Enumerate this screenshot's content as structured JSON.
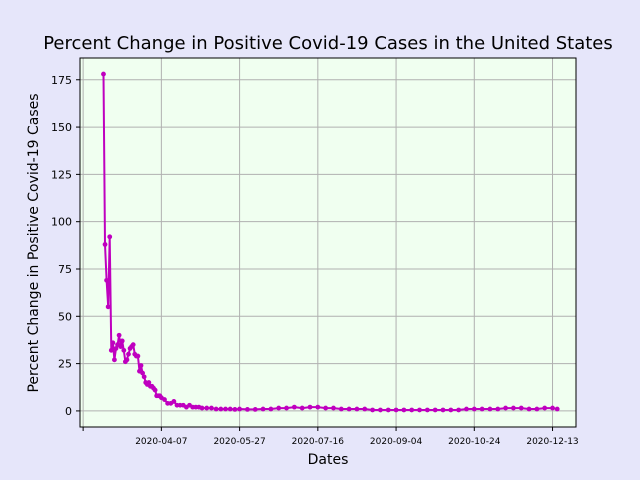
{
  "chart_data": {
    "type": "line",
    "title": "Percent Change in Positive Covid-19 Cases in the United States",
    "xlabel": "Dates",
    "ylabel": "Percent Change in Positive Covid-19 Cases",
    "x_range": [
      "2020-02-15",
      "2020-12-28"
    ],
    "ylim": [
      -8.5,
      186.5
    ],
    "x_ticks": [
      "",
      "2020-04-07",
      "2020-05-27",
      "2020-07-16",
      "2020-09-04",
      "2020-10-24",
      "2020-12-13"
    ],
    "y_ticks": [
      0,
      25,
      50,
      75,
      100,
      125,
      150,
      175
    ],
    "grid": true,
    "colors": {
      "background": "#e6e6fa",
      "plot_area": "#f0fff0",
      "grid": "#b0b0b0",
      "series": "#bf00bf"
    },
    "series": [
      {
        "x": [
          "2020-03-01",
          "2020-03-02",
          "2020-03-03",
          "2020-03-04",
          "2020-03-05",
          "2020-03-06",
          "2020-03-07",
          "2020-03-08",
          "2020-03-09",
          "2020-03-10",
          "2020-03-11",
          "2020-03-12",
          "2020-03-13",
          "2020-03-14",
          "2020-03-15",
          "2020-03-16",
          "2020-03-17",
          "2020-03-18",
          "2020-03-19",
          "2020-03-20",
          "2020-03-21",
          "2020-03-22",
          "2020-03-23",
          "2020-03-24",
          "2020-03-25",
          "2020-03-26",
          "2020-03-27",
          "2020-03-28",
          "2020-03-29",
          "2020-03-30",
          "2020-03-31",
          "2020-04-01",
          "2020-04-02",
          "2020-04-03",
          "2020-04-04",
          "2020-04-05",
          "2020-04-06",
          "2020-04-07",
          "2020-04-09",
          "2020-04-11",
          "2020-04-13",
          "2020-04-15",
          "2020-04-17",
          "2020-04-19",
          "2020-04-21",
          "2020-04-23",
          "2020-04-25",
          "2020-04-27",
          "2020-04-29",
          "2020-05-01",
          "2020-05-03",
          "2020-05-06",
          "2020-05-09",
          "2020-05-12",
          "2020-05-15",
          "2020-05-18",
          "2020-05-21",
          "2020-05-24",
          "2020-05-27",
          "2020-06-01",
          "2020-06-06",
          "2020-06-11",
          "2020-06-16",
          "2020-06-21",
          "2020-06-26",
          "2020-07-01",
          "2020-07-06",
          "2020-07-11",
          "2020-07-16",
          "2020-07-21",
          "2020-07-26",
          "2020-07-31",
          "2020-08-05",
          "2020-08-10",
          "2020-08-15",
          "2020-08-20",
          "2020-08-25",
          "2020-08-30",
          "2020-09-04",
          "2020-09-09",
          "2020-09-14",
          "2020-09-19",
          "2020-09-24",
          "2020-09-29",
          "2020-10-04",
          "2020-10-09",
          "2020-10-14",
          "2020-10-19",
          "2020-10-24",
          "2020-10-29",
          "2020-11-03",
          "2020-11-08",
          "2020-11-13",
          "2020-11-18",
          "2020-11-23",
          "2020-11-28",
          "2020-12-03",
          "2020-12-08",
          "2020-12-13",
          "2020-12-16"
        ],
        "values": [
          178,
          88,
          69,
          55,
          92,
          32,
          36,
          27,
          33,
          35,
          40,
          34,
          37,
          32,
          26,
          27,
          30,
          33,
          34,
          35,
          30,
          29,
          29,
          21,
          24,
          20,
          18,
          15,
          14,
          15,
          13,
          13,
          12,
          11,
          8,
          8,
          8,
          7,
          6,
          4,
          4,
          5,
          3,
          3,
          3,
          2,
          3,
          2,
          2,
          2,
          1.5,
          1.5,
          1.5,
          1,
          1,
          1,
          1,
          0.8,
          1,
          0.8,
          0.8,
          1,
          1,
          1.5,
          1.5,
          2,
          1.5,
          2,
          2,
          1.5,
          1.5,
          1,
          1,
          1,
          1,
          0.5,
          0.5,
          0.5,
          0.5,
          0.5,
          0.5,
          0.5,
          0.5,
          0.5,
          0.5,
          0.5,
          0.5,
          1,
          1,
          1,
          1,
          1,
          1.5,
          1.5,
          1.5,
          1,
          1,
          1.5,
          1.5,
          1
        ]
      }
    ]
  }
}
